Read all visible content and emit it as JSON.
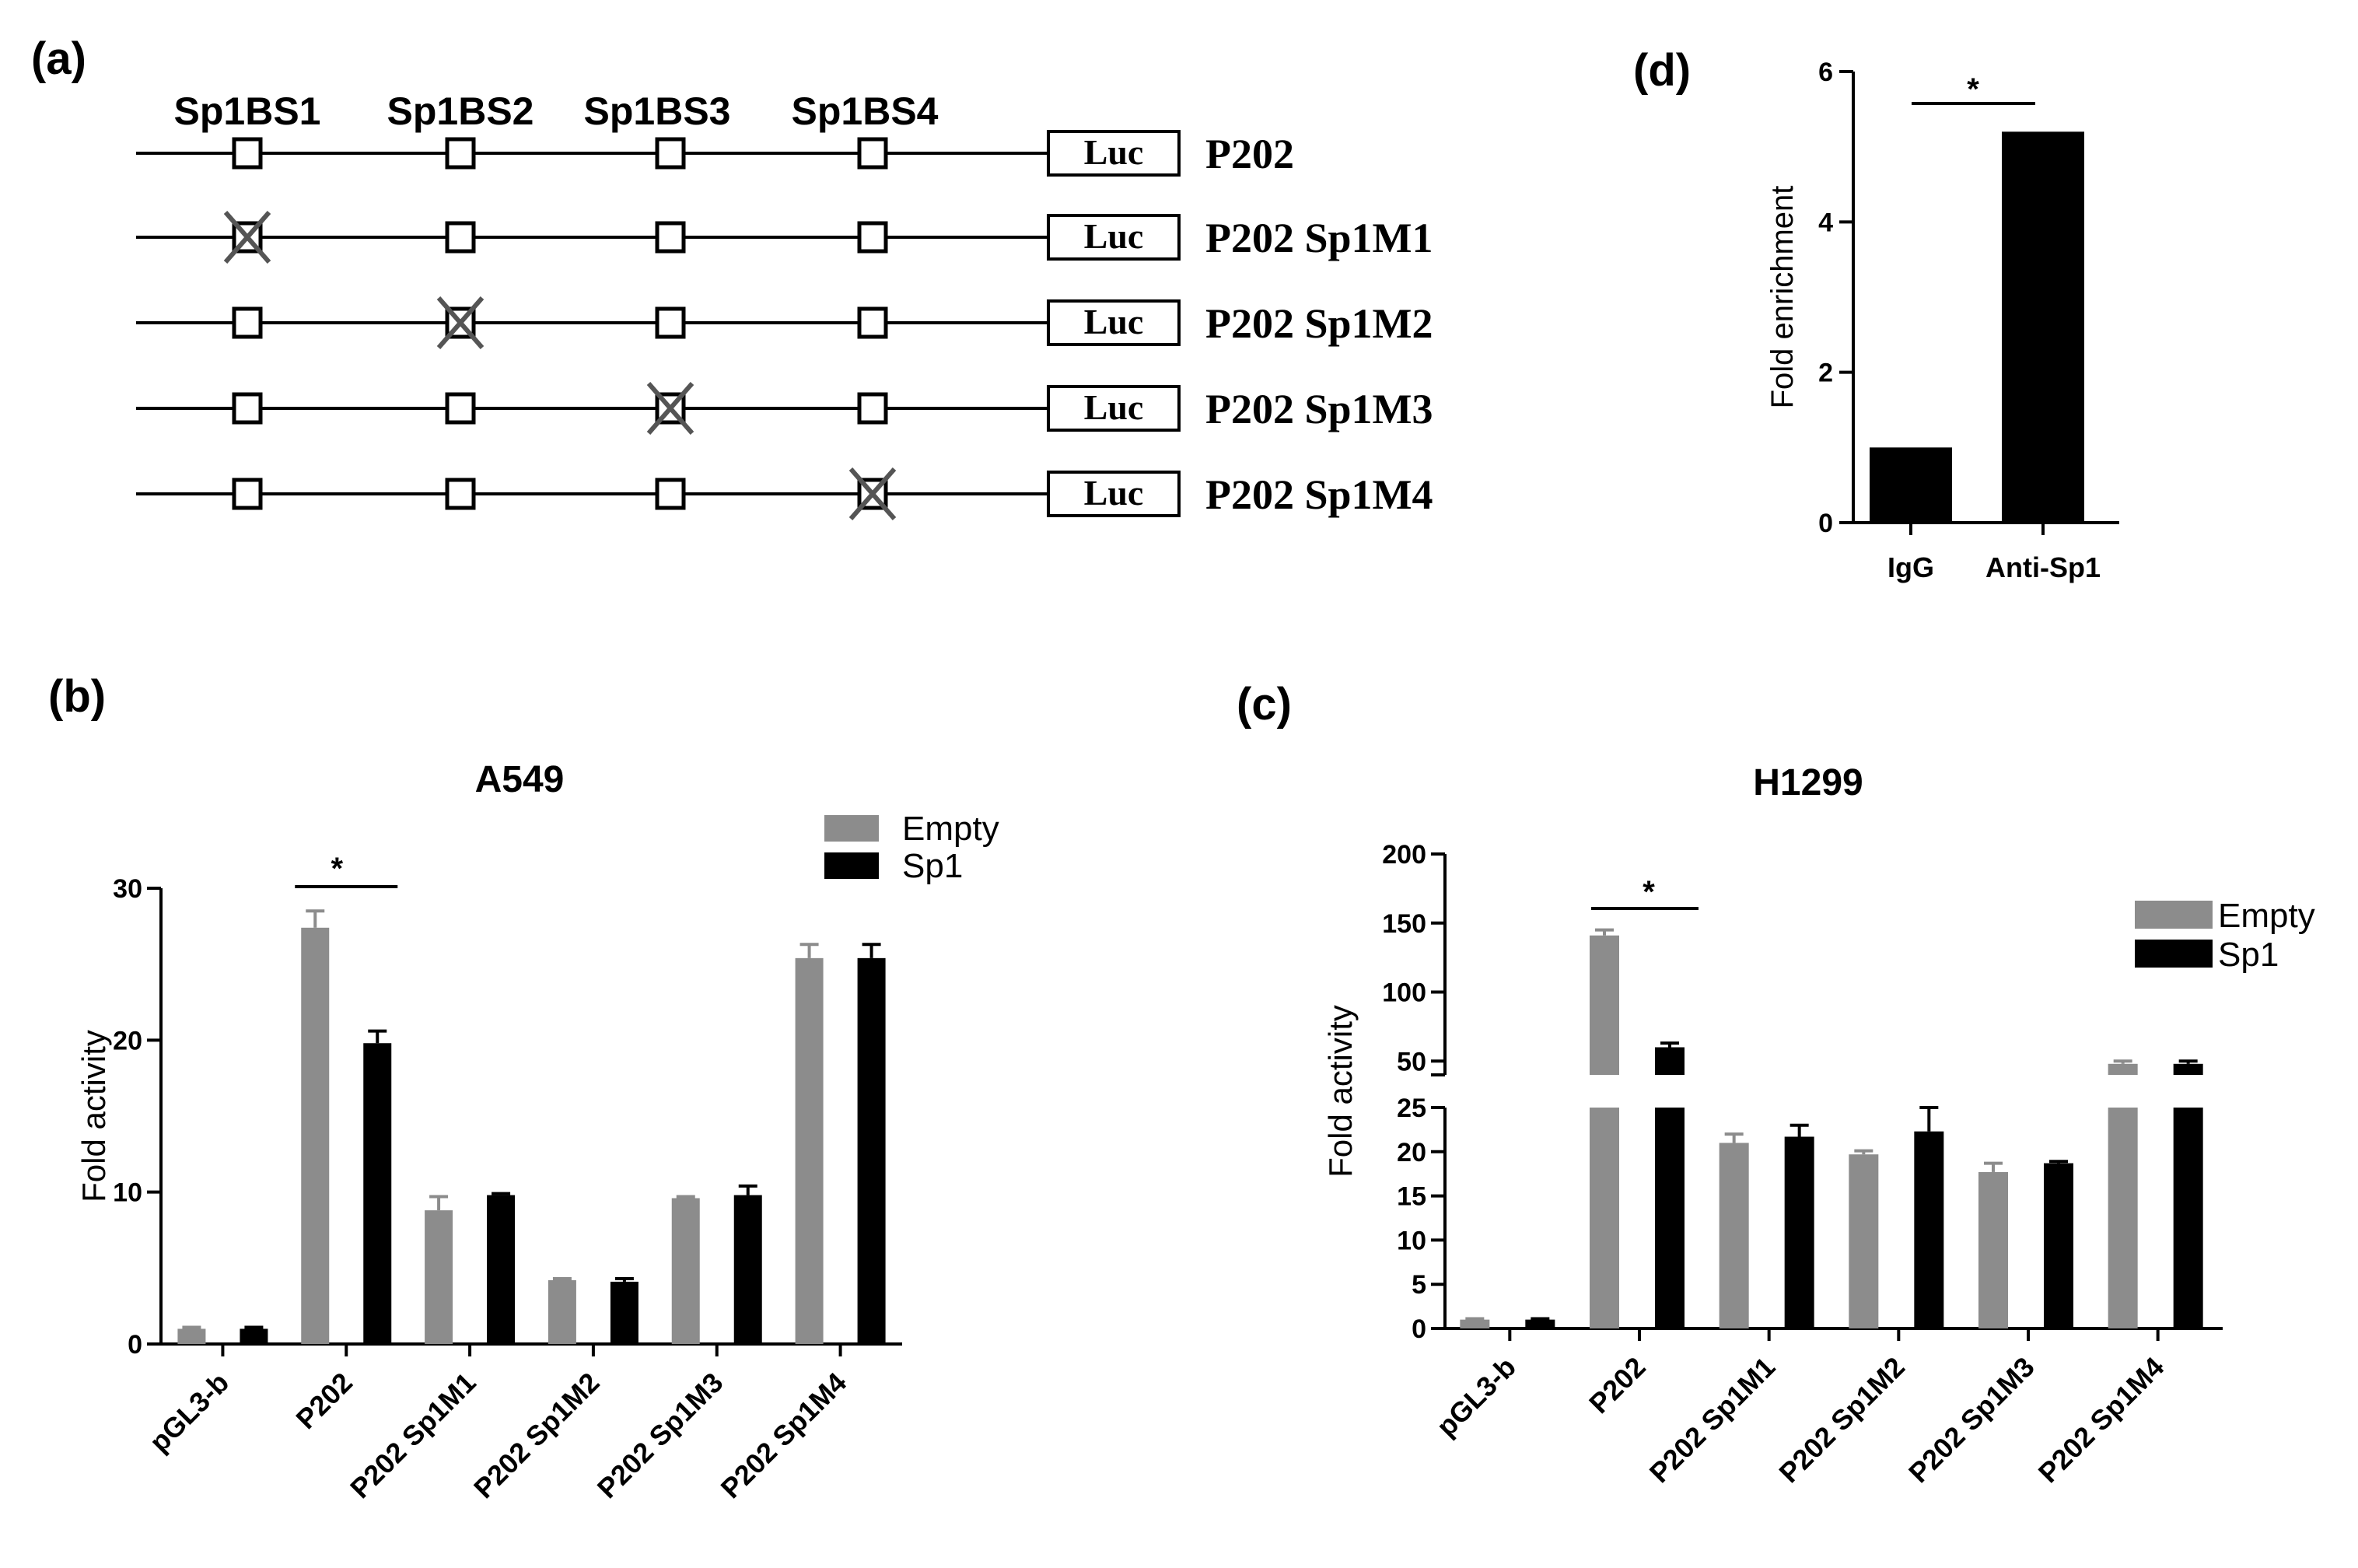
{
  "panels": {
    "a": "(a)",
    "b": "(b)",
    "c": "(c)",
    "d": "(d)"
  },
  "colors": {
    "empty": "#8c8c8c",
    "sp1": "#000000",
    "cross": "#555555"
  },
  "diagram": {
    "site_labels": [
      "Sp1BS1",
      "Sp1BS2",
      "Sp1BS3",
      "Sp1BS4"
    ],
    "reporter_label": "Luc",
    "constructs": [
      {
        "name": "P202",
        "mutated_site": null
      },
      {
        "name": "P202 Sp1M1",
        "mutated_site": 1
      },
      {
        "name": "P202 Sp1M2",
        "mutated_site": 2
      },
      {
        "name": "P202 Sp1M3",
        "mutated_site": 3
      },
      {
        "name": "P202 Sp1M4",
        "mutated_site": 4
      }
    ]
  },
  "chart_data": [
    {
      "id": "b",
      "type": "bar",
      "title": "A549",
      "xlabel": "",
      "ylabel": "Fold activity",
      "ylim": [
        0,
        30
      ],
      "yticks": [
        0,
        10,
        20,
        30
      ],
      "categories": [
        "pGL3-b",
        "P202",
        "P202 Sp1M1",
        "P202 Sp1M2",
        "P202 Sp1M3",
        "P202 Sp1M4"
      ],
      "series": [
        {
          "name": "Empty",
          "values": [
            1.0,
            27.4,
            8.8,
            4.2,
            9.6,
            25.4
          ],
          "errors": [
            0.1,
            1.1,
            0.9,
            0.1,
            0.1,
            0.9
          ]
        },
        {
          "name": "Sp1",
          "values": [
            1.0,
            19.8,
            9.8,
            4.1,
            9.8,
            25.4
          ],
          "errors": [
            0.1,
            0.8,
            0.1,
            0.2,
            0.6,
            0.9
          ]
        }
      ],
      "significance": [
        {
          "category": "P202",
          "label": "*"
        }
      ],
      "legend": "top-right"
    },
    {
      "id": "c",
      "type": "bar",
      "title": "H1299",
      "xlabel": "",
      "ylabel": "Fold activity",
      "axis_break": {
        "lower": [
          0,
          25
        ],
        "upper": [
          40,
          200
        ]
      },
      "yticks_lower": [
        0,
        5,
        10,
        15,
        20,
        25
      ],
      "yticks_upper": [
        50,
        100,
        150,
        200
      ],
      "categories": [
        "pGL3-b",
        "P202",
        "P202 Sp1M1",
        "P202 Sp1M2",
        "P202 Sp1M3",
        "P202 Sp1M4"
      ],
      "series": [
        {
          "name": "Empty",
          "values": [
            1.0,
            141,
            21.0,
            19.7,
            17.7,
            48
          ],
          "errors": [
            0.1,
            4,
            1.0,
            0.4,
            1.0,
            2
          ]
        },
        {
          "name": "Sp1",
          "values": [
            1.0,
            60,
            21.7,
            22.3,
            18.7,
            48
          ],
          "errors": [
            0.1,
            3,
            1.3,
            2.7,
            0.2,
            2
          ]
        }
      ],
      "significance": [
        {
          "category": "P202",
          "label": "*"
        }
      ],
      "legend": "top-right"
    },
    {
      "id": "d",
      "type": "bar",
      "title": "",
      "xlabel": "",
      "ylabel": "Fold enrichment",
      "ylim": [
        0,
        6
      ],
      "yticks": [
        0,
        2,
        4,
        6
      ],
      "categories": [
        "IgG",
        "Anti-Sp1"
      ],
      "values": [
        1.0,
        5.2
      ],
      "significance": [
        {
          "from": "IgG",
          "to": "Anti-Sp1",
          "label": "*"
        }
      ]
    }
  ]
}
